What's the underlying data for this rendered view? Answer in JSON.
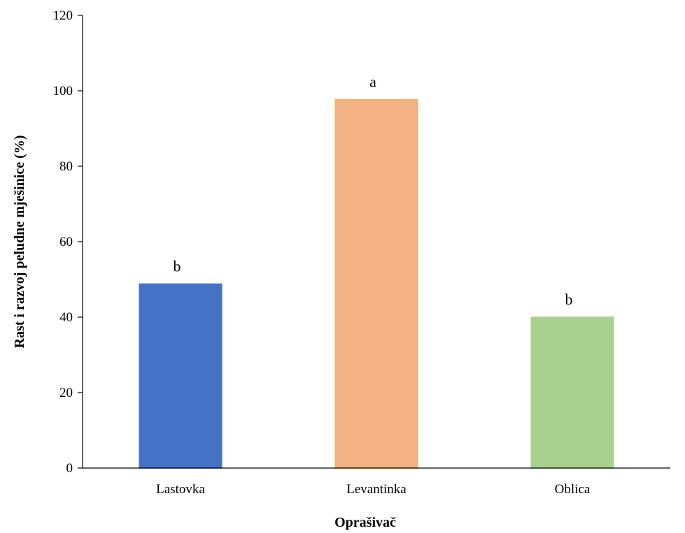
{
  "chart_data": {
    "type": "bar",
    "title": "",
    "xlabel": "Oprašivač",
    "ylabel": "Rast i razvoj peludne mješinice (%)",
    "categories": [
      "Lastovka",
      "Levantinka",
      "Oblica"
    ],
    "values": [
      48.8,
      97.7,
      40.0
    ],
    "significance_labels": [
      "b",
      "a",
      "b"
    ],
    "colors": [
      "#4472C4",
      "#F4B183",
      "#A9D18E"
    ],
    "border_colors": [
      "#4472C4",
      "#FFC000",
      "#A9D18E"
    ],
    "ylim": [
      0,
      120
    ],
    "yticks": [
      0,
      20,
      40,
      60,
      80,
      100,
      120
    ],
    "grid": false,
    "legend": "none"
  }
}
